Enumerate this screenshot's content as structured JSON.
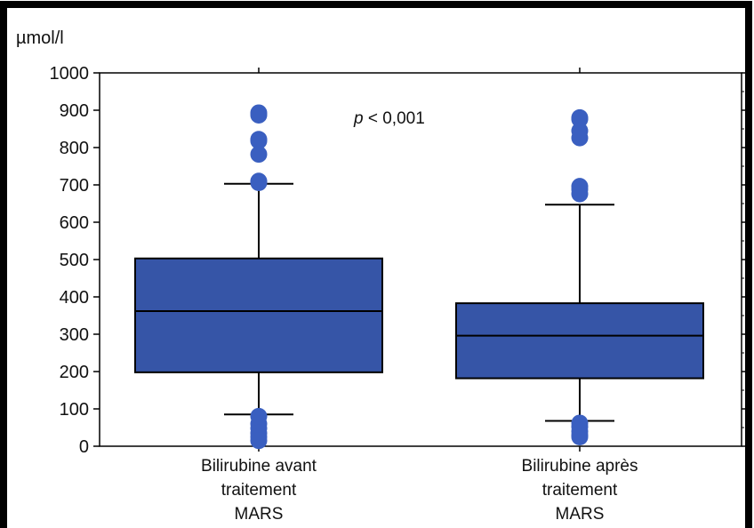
{
  "chart_data": {
    "type": "boxplot",
    "ylabel": "µmol/l",
    "ylim": [
      0,
      1000
    ],
    "yticks": [
      0,
      100,
      200,
      300,
      400,
      500,
      600,
      700,
      800,
      900,
      1000
    ],
    "annotation": {
      "italic": "p",
      "rest": " < 0,001"
    },
    "box_color": "#3655A7",
    "outlier_color": "#3A5FC0",
    "groups": [
      {
        "label_lines": [
          "Bilirubine avant",
          "traitement",
          "MARS"
        ],
        "whisker_low": 85,
        "q1": 198,
        "median": 362,
        "q3": 503,
        "whisker_high": 703,
        "outliers": [
          893,
          887,
          822,
          818,
          782,
          710,
          706,
          80,
          60,
          48,
          35,
          25,
          15
        ]
      },
      {
        "label_lines": [
          "Bilirubine après",
          "traitement",
          "MARS"
        ],
        "whisker_low": 68,
        "q1": 182,
        "median": 296,
        "q3": 383,
        "whisker_high": 647,
        "outliers": [
          880,
          876,
          845,
          826,
          696,
          688,
          676,
          62,
          52,
          40,
          30,
          25
        ]
      }
    ]
  }
}
